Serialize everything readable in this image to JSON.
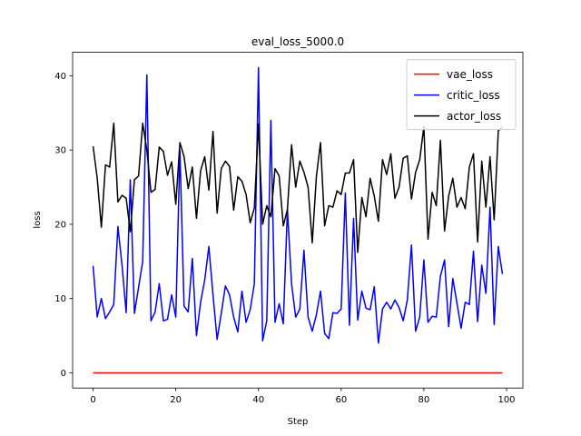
{
  "chart_data": {
    "type": "line",
    "title": "eval_loss_5000.0",
    "xlabel": "Step",
    "ylabel": "loss",
    "x": [
      0,
      1,
      2,
      3,
      4,
      5,
      6,
      7,
      8,
      9,
      10,
      11,
      12,
      13,
      14,
      15,
      16,
      17,
      18,
      19,
      20,
      21,
      22,
      23,
      24,
      25,
      26,
      27,
      28,
      29,
      30,
      31,
      32,
      33,
      34,
      35,
      36,
      37,
      38,
      39,
      40,
      41,
      42,
      43,
      44,
      45,
      46,
      47,
      48,
      49,
      50,
      51,
      52,
      53,
      54,
      55,
      56,
      57,
      58,
      59,
      60,
      61,
      62,
      63,
      64,
      65,
      66,
      67,
      68,
      69,
      70,
      71,
      72,
      73,
      74,
      75,
      76,
      77,
      78,
      79,
      80,
      81,
      82,
      83,
      84,
      85,
      86,
      87,
      88,
      89,
      90,
      91,
      92,
      93,
      94,
      95,
      96,
      97,
      98,
      99
    ],
    "series": [
      {
        "name": "vae_loss",
        "color": "#ff0000",
        "values": [
          0,
          0,
          0,
          0,
          0,
          0,
          0,
          0,
          0,
          0,
          0,
          0,
          0,
          0,
          0,
          0,
          0,
          0,
          0,
          0,
          0,
          0,
          0,
          0,
          0,
          0,
          0,
          0,
          0,
          0,
          0,
          0,
          0,
          0,
          0,
          0,
          0,
          0,
          0,
          0,
          0,
          0,
          0,
          0,
          0,
          0,
          0,
          0,
          0,
          0,
          0,
          0,
          0,
          0,
          0,
          0,
          0,
          0,
          0,
          0,
          0,
          0,
          0,
          0,
          0,
          0,
          0,
          0,
          0,
          0,
          0,
          0,
          0,
          0,
          0,
          0,
          0,
          0,
          0,
          0,
          0,
          0,
          0,
          0,
          0,
          0,
          0,
          0,
          0,
          0,
          0,
          0,
          0,
          0,
          0,
          0,
          0,
          0,
          0,
          0
        ]
      },
      {
        "name": "critic_loss",
        "color": "#0000ff",
        "values": [
          14.4,
          7.5,
          10,
          7.3,
          8.2,
          9.2,
          19.7,
          14.5,
          8.1,
          26,
          8,
          11.5,
          15,
          40.1,
          7,
          8.2,
          12,
          7,
          7.2,
          10.5,
          7.5,
          30,
          9,
          8.2,
          15.4,
          5,
          9.5,
          12.5,
          17,
          10.5,
          4.5,
          8,
          11.7,
          10.5,
          7.5,
          5.5,
          11,
          6.8,
          8.5,
          12,
          41.1,
          4.3,
          7,
          34,
          6.8,
          9.3,
          6.6,
          22,
          12,
          7.5,
          8.6,
          16.5,
          7.5,
          5.6,
          7.8,
          11,
          5.3,
          4.6,
          8.1,
          8,
          8.6,
          24.2,
          6.4,
          20.8,
          7.1,
          11,
          8.7,
          8.5,
          11.6,
          4,
          8.6,
          9.5,
          8.6,
          9.8,
          8.8,
          7,
          9.8,
          17.2,
          5.6,
          7.5,
          15.2,
          6.8,
          7.6,
          7.5,
          13,
          15.2,
          6.2,
          12.7,
          9.4,
          6,
          9.5,
          9.2,
          16.4,
          6.9,
          14.5,
          10.7,
          22.3,
          6.5,
          17,
          13.3
        ]
      },
      {
        "name": "actor_loss",
        "color": "#000000",
        "values": [
          30.5,
          26.2,
          19.6,
          28,
          27.7,
          33.6,
          23,
          23.9,
          23.5,
          19,
          26,
          26.5,
          33.6,
          30,
          24.3,
          24.7,
          30.4,
          29.8,
          26.6,
          28.4,
          22.7,
          31,
          29.1,
          24.8,
          27.7,
          20.8,
          27.2,
          29.1,
          24.6,
          32.5,
          21.5,
          27.5,
          28.5,
          27.8,
          21.9,
          26.4,
          25.8,
          24,
          20.2,
          22.2,
          33.5,
          20,
          22.5,
          21,
          27.5,
          26.5,
          19.8,
          22,
          30.7,
          25,
          28.5,
          27,
          25,
          17.5,
          26.4,
          31,
          19.8,
          22.5,
          22.3,
          24.5,
          24,
          26.9,
          26.9,
          28.7,
          16.2,
          23.6,
          21,
          26.2,
          23.8,
          20.4,
          28.7,
          26.7,
          29.5,
          23.5,
          25,
          28.9,
          29.2,
          23.4,
          27,
          28.7,
          33.2,
          18,
          24.3,
          22.5,
          31.3,
          19.1,
          23.8,
          26.2,
          22.3,
          23.6,
          22.1,
          27.7,
          29.5,
          17.6,
          28.5,
          22.3,
          29.1,
          20.6,
          32.6,
          33.1
        ]
      }
    ],
    "xlim": [
      -4.95,
      103.95
    ],
    "xticks": [
      0,
      20,
      40,
      60,
      80,
      100
    ],
    "ylim": [
      -2.05,
      43.15
    ],
    "yticks": [
      0,
      10,
      20,
      30,
      40
    ],
    "legend": "upper right"
  }
}
